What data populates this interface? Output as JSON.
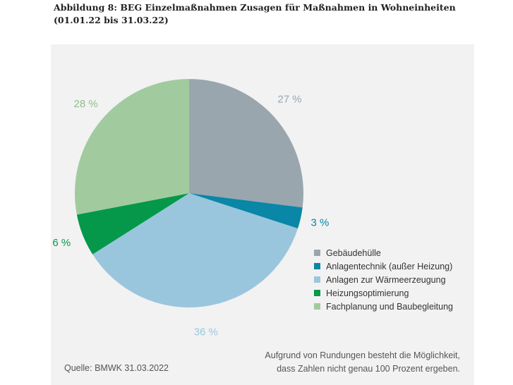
{
  "caption": "Abbildung 8: BEG Einzelmaßnahmen Zusagen für Maßnahmen in Wohneinheiten (01.01.22 bis 31.03.22)",
  "chart_data": {
    "type": "pie",
    "slices": [
      {
        "name": "Gebäudehülle",
        "value": 27,
        "label": "27 %",
        "color": "#9aa6ae"
      },
      {
        "name": "Anlagentechnik (außer Heizung)",
        "value": 3,
        "label": "3 %",
        "color": "#0a86a6"
      },
      {
        "name": "Anlagen zur Wärmeerzeugung",
        "value": 36,
        "label": "36 %",
        "color": "#9ac6dd"
      },
      {
        "name": "Heizungsoptimierung",
        "value": 6,
        "label": "6 %",
        "color": "#06984a"
      },
      {
        "name": "Fachplanung und Baubegleitung",
        "value": 28,
        "label": "28 %",
        "color": "#a1cb9f"
      }
    ],
    "start_angle_deg": 0,
    "direction": "clockwise-from-top",
    "label_colors": [
      "#9aa6ae",
      "#0a86a6",
      "#9ac6dd",
      "#06984a",
      "#8fbf8d"
    ]
  },
  "source": "Quelle: BMWK 31.03.2022",
  "note": {
    "line1": "Aufgrund von Rundungen besteht die Möglichkeit,",
    "line2": "dass Zahlen nicht genau 100 Prozent ergeben."
  }
}
